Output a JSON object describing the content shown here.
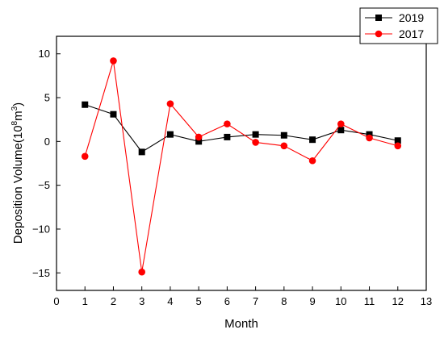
{
  "chart_data": {
    "type": "line",
    "xlabel": "Month",
    "ylabel": {
      "prefix": "Deposition Volume(10",
      "exp1": "8",
      "mid": "m",
      "exp2": "3",
      "suffix": ")"
    },
    "xlim": [
      0,
      13
    ],
    "ylim": [
      -17,
      12
    ],
    "x_ticks": [
      0,
      1,
      2,
      3,
      4,
      5,
      6,
      7,
      8,
      9,
      10,
      11,
      12,
      13
    ],
    "x_tick_labels": [
      "0",
      "1",
      "2",
      "3",
      "4",
      "5",
      "6",
      "7",
      "8",
      "9",
      "10",
      "11",
      "12",
      "13"
    ],
    "y_ticks": [
      10,
      5,
      0,
      -5,
      -10,
      -15
    ],
    "y_tick_labels": [
      "10",
      "5",
      "0",
      "−5",
      "−10",
      "−15"
    ],
    "grid": false,
    "legend_position": "top-right",
    "series": [
      {
        "name": "2019",
        "color": "#000000",
        "marker": "square",
        "x": [
          1,
          2,
          3,
          4,
          5,
          6,
          7,
          8,
          9,
          10,
          11,
          12
        ],
        "y": [
          4.2,
          3.1,
          -1.2,
          0.8,
          0.0,
          0.5,
          0.8,
          0.7,
          0.2,
          1.3,
          0.8,
          0.1
        ]
      },
      {
        "name": "2017",
        "color": "#ff0000",
        "marker": "circle",
        "x": [
          1,
          2,
          3,
          4,
          5,
          6,
          7,
          8,
          9,
          10,
          11,
          12
        ],
        "y": [
          -1.7,
          9.2,
          -14.9,
          4.3,
          0.5,
          2.0,
          -0.1,
          -0.5,
          -2.2,
          2.0,
          0.4,
          -0.5
        ]
      }
    ]
  }
}
